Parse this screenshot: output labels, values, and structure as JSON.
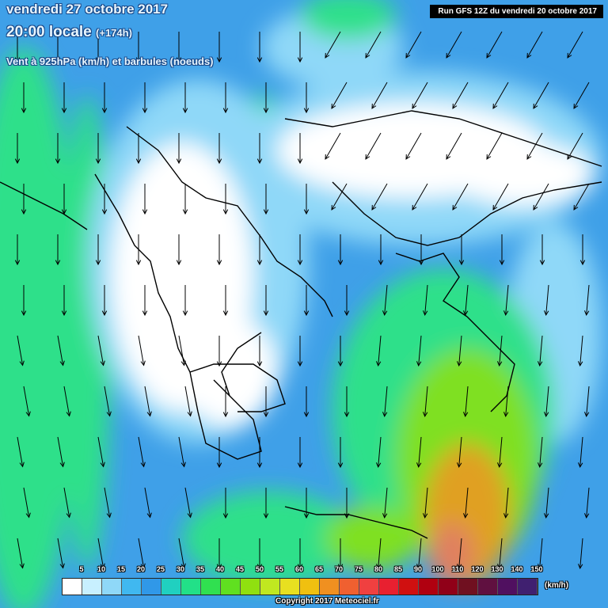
{
  "header": {
    "date_line": "vendredi 27 octobre 2017",
    "time_line": "20:00 locale",
    "forecast_offset": "(+174h)",
    "variable_line": "Vent à 925hPa (km/h) et barbules (noeuds)"
  },
  "run_info": "Run GFS 12Z du vendredi 20 octobre 2017",
  "map": {
    "wind_flow": "north to south",
    "strongest_winds_region": "south-east, south of the Aegean near Crete",
    "colors": {
      "calm": "#ffffff",
      "light": "#8fd8f8",
      "moderate": "#3fa0e8",
      "fresh": "#2ee08a",
      "strong": "#7fe020",
      "very_strong": "#e0a020",
      "extreme": "#e08060",
      "coastline": "#000000",
      "arrow": "#000000"
    }
  },
  "legend": {
    "unit": "(km/h)",
    "values": [
      "5",
      "10",
      "15",
      "20",
      "25",
      "30",
      "35",
      "40",
      "45",
      "50",
      "55",
      "60",
      "65",
      "70",
      "75",
      "80",
      "85",
      "90",
      "100",
      "110",
      "120",
      "130",
      "140",
      "150"
    ],
    "colors": [
      "#ffffff",
      "#c8f0ff",
      "#8fd8f8",
      "#40b8f0",
      "#3098e8",
      "#20d0c0",
      "#22e088",
      "#30e050",
      "#60e020",
      "#90e010",
      "#c0e820",
      "#e8e020",
      "#f0c010",
      "#f09020",
      "#f06030",
      "#f04040",
      "#e82030",
      "#d01010",
      "#b00010",
      "#900018",
      "#701020",
      "#601040",
      "#501060",
      "#402070"
    ]
  },
  "footer": {
    "copyright": "Copyright 2017 Meteociel.fr"
  }
}
